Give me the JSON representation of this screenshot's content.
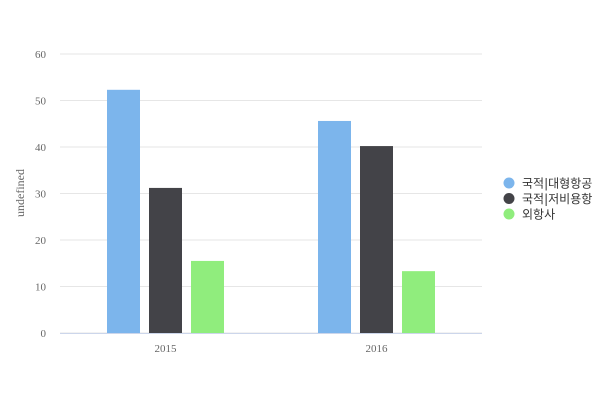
{
  "chart_data": {
    "type": "bar",
    "y_label": "undefined",
    "categories": [
      "2015",
      "2016"
    ],
    "series": [
      {
        "name": "국적|대형항공",
        "color": "#7cb5ec",
        "values": [
          52.3,
          45.6
        ]
      },
      {
        "name": "국적|저비용항",
        "color": "#434348",
        "values": [
          31.2,
          40.2
        ]
      },
      {
        "name": "외항사",
        "color": "#90ed7d",
        "values": [
          15.5,
          13.3
        ]
      }
    ],
    "ylim": [
      0,
      60
    ],
    "yticks": [
      0,
      10,
      20,
      30,
      40,
      50,
      60
    ],
    "grid": true
  }
}
